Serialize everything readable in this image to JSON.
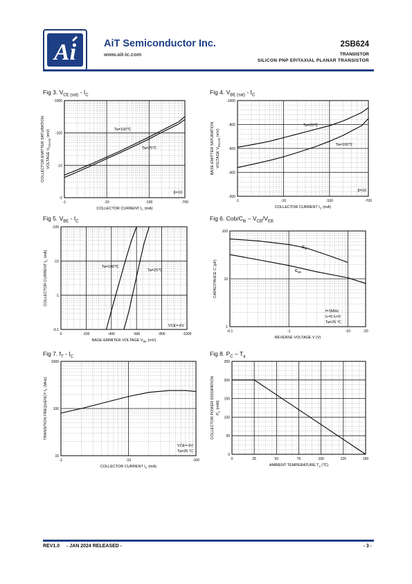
{
  "header": {
    "company": "AiT Semiconductor Inc.",
    "website": "www.ait-ic.com",
    "part_number": "2SB624",
    "product_type": "TRANSISTOR",
    "description": "SILICON PNP EPITAXIAL PLANAR TRANSISTOR",
    "brand_color": "#1e3f85"
  },
  "figures": {
    "fig3": {
      "title": "Fig 3. V",
      "t1": "CE (sat)",
      "t2": " - I",
      "t3": "C"
    },
    "fig4": {
      "title": "Fig 4. V",
      "t1": "BE (sat)",
      "t2": " - I",
      "t3": "C"
    },
    "fig5": {
      "title": "Fig 5. V",
      "t1": "BE",
      "t2": " - I",
      "t3": "C"
    },
    "fig6": {
      "title": "Fig 6. Cob/C",
      "t1": "ib",
      "t2": " – V",
      "t3": "CB",
      "t4": "/V",
      "t5": "EB"
    },
    "fig7": {
      "title": "Fig 7. f",
      "t1": "T",
      "t2": " - I",
      "t3": "C"
    },
    "fig8": {
      "title": "Fig 8. P",
      "t1": "C",
      "t2": " – T",
      "t3": "a"
    }
  },
  "chart_data": [
    {
      "id": "fig3",
      "type": "line",
      "xlabel": "COLLECTOR CURRENT   I",
      "xlabel_sub": "C",
      "xlabel_unit": "  (mA)",
      "ylabel": "COLLECTOR-EMITTER SATURATION",
      "ylabel2": "VOLTAGE  V",
      "ylabel2_sub": "CE(sat)",
      "ylabel2_unit": "  (mV)",
      "x_scale": "log",
      "y_scale": "log",
      "xlim": [
        1,
        700
      ],
      "ylim": [
        1,
        1000
      ],
      "x_ticks": [
        "-1",
        "-10",
        "-100",
        "-700"
      ],
      "y_ticks": [
        "-1",
        "-10",
        "-100",
        "-1000"
      ],
      "series": [
        {
          "name": "Ta=100℃",
          "x": [
            1,
            2,
            5,
            10,
            20,
            50,
            100,
            200,
            500,
            700
          ],
          "y": [
            5,
            7.2,
            12,
            18,
            27,
            48,
            75,
            120,
            220,
            320
          ]
        },
        {
          "name": "Ta=25℃",
          "x": [
            1,
            2,
            5,
            10,
            20,
            50,
            100,
            200,
            500,
            700
          ],
          "y": [
            4.2,
            6.2,
            10.5,
            16,
            24,
            42,
            65,
            105,
            190,
            260
          ]
        }
      ],
      "annotations": [
        "β=10"
      ]
    },
    {
      "id": "fig4",
      "type": "line",
      "xlabel": "COLLECTOR CURRENT   I",
      "xlabel_sub": "C",
      "xlabel_unit": "  (mA)",
      "ylabel": "BASE-EMITTER SATURATION",
      "ylabel2": "VOLTAGE  V",
      "ylabel2_sub": "BE(sat)",
      "ylabel2_unit": "  (mV)",
      "x_scale": "log",
      "y_scale": "linear",
      "xlim": [
        1,
        700
      ],
      "ylim": [
        200,
        1000
      ],
      "x_ticks": [
        "-1",
        "-10",
        "-100",
        "-700"
      ],
      "y_ticks": [
        "-200",
        "-400",
        "-600",
        "-800",
        "-1000"
      ],
      "series": [
        {
          "name": "Ta=25℃",
          "x": [
            1,
            2,
            5,
            10,
            20,
            50,
            100,
            200,
            500,
            700
          ],
          "y": [
            610,
            630,
            660,
            690,
            720,
            760,
            790,
            830,
            900,
            940
          ]
        },
        {
          "name": "Ta=100℃",
          "x": [
            1,
            2,
            5,
            10,
            20,
            50,
            100,
            200,
            500,
            700
          ],
          "y": [
            440,
            465,
            500,
            530,
            565,
            615,
            660,
            710,
            790,
            850
          ]
        }
      ],
      "annotations": [
        "β=10"
      ]
    },
    {
      "id": "fig5",
      "type": "line",
      "xlabel": "BASE-EMMITER VOLTAGE   V",
      "xlabel_sub": "BE",
      "xlabel_unit": "  (mV)",
      "ylabel": "COLLECTOR CURRENT  I",
      "ylabel_sub": "C",
      "ylabel_unit": "  (mA)",
      "x_scale": "linear",
      "y_scale": "log",
      "xlim": [
        0,
        1000
      ],
      "ylim": [
        0.1,
        100
      ],
      "x_ticks": [
        "0",
        "-200",
        "-400",
        "-600",
        "-800",
        "-1000"
      ],
      "y_ticks": [
        "-0.1",
        "-1",
        "-10",
        "-100"
      ],
      "series": [
        {
          "name": "Ta=100℃",
          "x": [
            360,
            400,
            440,
            480,
            520,
            560,
            600
          ],
          "y": [
            0.1,
            0.35,
            1.2,
            4,
            13,
            40,
            100
          ]
        },
        {
          "name": "Ta=25℃",
          "x": [
            500,
            540,
            570,
            600,
            630,
            660,
            700
          ],
          "y": [
            0.1,
            0.35,
            1.1,
            3.5,
            11,
            33,
            100
          ]
        }
      ],
      "annotations": [
        "VCE=-6V"
      ]
    },
    {
      "id": "fig6",
      "type": "line",
      "xlabel": "REVERSE VOLTAGE   V   (V)",
      "ylabel": "CAPACITANCE   C   (pF)",
      "x_scale": "log",
      "y_scale": "log",
      "xlim": [
        0.1,
        20
      ],
      "ylim": [
        1,
        100
      ],
      "x_ticks": [
        "-0.1",
        "-1",
        "-10",
        "-20"
      ],
      "y_ticks": [
        "1",
        "10",
        "100"
      ],
      "series": [
        {
          "name": "C",
          "name_sub": "ib",
          "x": [
            0.1,
            0.3,
            1,
            2,
            5,
            10
          ],
          "y": [
            68,
            62,
            52,
            44,
            30,
            22
          ]
        },
        {
          "name": "C",
          "name_sub": "ob",
          "x": [
            0.1,
            0.3,
            1,
            3,
            10,
            20
          ],
          "y": [
            32,
            25,
            19,
            14,
            10.5,
            8
          ]
        }
      ],
      "annotations": [
        "f=1MHz",
        "I",
        "E",
        "=0  I",
        "c",
        "=0",
        "Ta=25 °C"
      ]
    },
    {
      "id": "fig7",
      "type": "line",
      "xlabel": "COLLECTOR CURRENT   I",
      "xlabel_sub": "C",
      "xlabel_unit": "  (mA)",
      "ylabel": "TRANSITION FREQUENCY   f",
      "ylabel_sub": "T",
      "ylabel_unit": "   (MHz)",
      "x_scale": "log",
      "y_scale": "log",
      "xlim": [
        1,
        100
      ],
      "ylim": [
        10,
        1000
      ],
      "x_ticks": [
        "-1",
        "-10",
        "-100"
      ],
      "y_ticks": [
        "10",
        "100",
        "1000"
      ],
      "series": [
        {
          "name": "fT",
          "x": [
            1,
            2,
            5,
            10,
            20,
            40,
            70,
            100
          ],
          "y": [
            80,
            100,
            140,
            180,
            220,
            240,
            240,
            230
          ]
        }
      ],
      "annotations": [
        "VCE=-6V",
        "Ta=25 °C"
      ]
    },
    {
      "id": "fig8",
      "type": "line",
      "xlabel": "AMBIENT TEMPERATURE   T",
      "xlabel_sub": "a",
      "xlabel_unit": "   (℃)",
      "ylabel": "COLLECTOR POWER DISSIPATION",
      "ylabel2": "P",
      "ylabel2_sub": "C",
      "ylabel2_unit": "   (mW)",
      "x_scale": "linear",
      "y_scale": "linear",
      "xlim": [
        0,
        150
      ],
      "ylim": [
        0,
        250
      ],
      "x_ticks": [
        "0",
        "25",
        "50",
        "75",
        "100",
        "125",
        "150"
      ],
      "y_ticks": [
        "0",
        "50",
        "100",
        "150",
        "200",
        "250"
      ],
      "series": [
        {
          "name": "PC",
          "x": [
            0,
            25,
            150
          ],
          "y": [
            200,
            200,
            0
          ]
        }
      ],
      "annotations": []
    }
  ],
  "footer": {
    "revision": "REV1.0",
    "release": "- JAN 2024 RELEASED -",
    "page": "- 3 -"
  }
}
